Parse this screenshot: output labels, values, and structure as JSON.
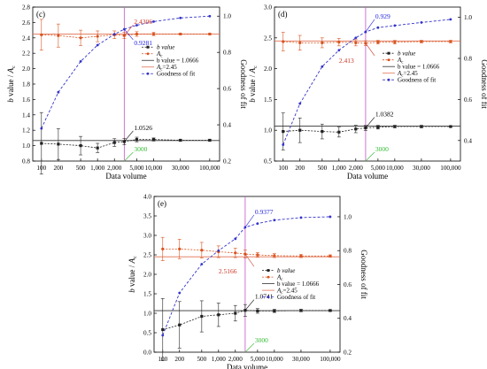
{
  "chart_data": [
    {
      "type": "line",
      "panel_label": "(c)",
      "x_scale": "log",
      "x": [
        100,
        200,
        500,
        1000,
        2000,
        3000,
        5000,
        10000,
        30000,
        100000
      ],
      "xticks": [
        100,
        200,
        500,
        1000,
        2000,
        5000,
        10000,
        30000,
        100000
      ],
      "xtick_labels": [
        "100",
        "200",
        "500",
        "1,000",
        "2,000",
        "5,000",
        "10,000",
        "30,000",
        "100,000"
      ],
      "xlim": [
        70,
        150000
      ],
      "xlabel": "Data volume",
      "ylabel_left_b": "b",
      "ylabel_left_rest": " value / ",
      "ylabel_left_a": "A",
      "ylabel_left_sub": "c",
      "ylim_left": [
        0.8,
        2.8
      ],
      "yticks_left": [
        0.8,
        1.0,
        1.2,
        1.4,
        1.6,
        1.8,
        2.0,
        2.2,
        2.4,
        2.6,
        2.8
      ],
      "ylabel_right": "Goodness of fit",
      "ylim_right": [
        0.2,
        1.05
      ],
      "yticks_right": [
        0.2,
        0.4,
        0.6,
        0.8,
        1.0
      ],
      "ref_b": 1.0666,
      "ref_ac": 2.45,
      "split_x": 3000,
      "b_values": [
        1.03,
        1.02,
        1.0,
        0.97,
        1.04,
        1.053,
        1.08,
        1.08,
        1.07,
        1.07
      ],
      "b_err": [
        0.4,
        0.2,
        0.12,
        0.06,
        0.05,
        0.04,
        0.03,
        0.02,
        0.01,
        0.01
      ],
      "ac_values": [
        2.44,
        2.43,
        2.4,
        2.42,
        2.44,
        2.43,
        2.45,
        2.45,
        2.45,
        2.45
      ],
      "ac_err": [
        0.2,
        0.15,
        0.1,
        0.07,
        0.05,
        0.04,
        0.03,
        0.02,
        0.01,
        0.01
      ],
      "gof_values": [
        0.38,
        0.58,
        0.75,
        0.84,
        0.9,
        0.928,
        0.95,
        0.97,
        0.99,
        1.0
      ],
      "annotations": {
        "b": "1.0526",
        "ac": "2.4306",
        "gof": "0.9281",
        "split": "3000"
      },
      "legend": {
        "b": "b value",
        "ac": "A",
        "ac_sub": "c",
        "ref_b": "b value = 1.0666",
        "ref_ac_pre": "A",
        "ref_ac_sub": "c",
        "ref_ac_post": "=2.45",
        "gof": "Goodness of fit"
      }
    },
    {
      "type": "line",
      "panel_label": "(d)",
      "x_scale": "log",
      "x": [
        100,
        200,
        500,
        1000,
        2000,
        3000,
        5000,
        10000,
        30000,
        100000
      ],
      "xticks": [
        100,
        200,
        500,
        1000,
        2000,
        5000,
        10000,
        30000,
        100000
      ],
      "xtick_labels": [
        "100",
        "200",
        "500",
        "1,000",
        "2,000",
        "5,000",
        "10,000",
        "30,000",
        "100,000"
      ],
      "xlim": [
        70,
        150000
      ],
      "xlabel": "Data volume",
      "ylabel_left_b": "b",
      "ylabel_left_rest": " value / ",
      "ylabel_left_a": "A",
      "ylabel_left_sub": "c",
      "ylim_left": [
        0.5,
        3.0
      ],
      "yticks_left": [
        0.5,
        1.0,
        1.5,
        2.0,
        2.5,
        3.0
      ],
      "ylabel_right": "Goodness of fit",
      "ylim_right": [
        0.3,
        1.05
      ],
      "yticks_right": [
        0.4,
        0.6,
        0.8,
        1.0
      ],
      "ref_b": 1.0666,
      "ref_ac": 2.45,
      "split_x": 3000,
      "b_values": [
        0.98,
        1.0,
        0.98,
        0.97,
        1.02,
        1.038,
        1.05,
        1.06,
        1.06,
        1.06
      ],
      "b_err": [
        0.3,
        0.2,
        0.12,
        0.08,
        0.06,
        0.04,
        0.03,
        0.02,
        0.02,
        0.01
      ],
      "ac_values": [
        2.44,
        2.42,
        2.42,
        2.43,
        2.42,
        2.413,
        2.43,
        2.43,
        2.44,
        2.44
      ],
      "ac_err": [
        0.15,
        0.12,
        0.08,
        0.06,
        0.05,
        0.04,
        0.03,
        0.03,
        0.02,
        0.02
      ],
      "gof_values": [
        0.38,
        0.58,
        0.76,
        0.84,
        0.9,
        0.929,
        0.95,
        0.96,
        0.975,
        0.99
      ],
      "annotations": {
        "b": "1.0382",
        "ac": "2.413",
        "gof": "0.929",
        "split": "3000"
      },
      "legend": {
        "b": "b value",
        "ac": "A",
        "ac_sub": "c",
        "ref_b": "b value = 1.0666",
        "ref_ac_pre": "A",
        "ref_ac_sub": "c",
        "ref_ac_post": "=2.45",
        "gof": "Goodness of fit"
      }
    },
    {
      "type": "line",
      "panel_label": "(e)",
      "x_scale": "log",
      "x": [
        100,
        200,
        500,
        1000,
        2000,
        3000,
        5000,
        10000,
        30000,
        100000
      ],
      "xticks": [
        100,
        200,
        500,
        1000,
        2000,
        5000,
        10000,
        30000,
        100000
      ],
      "xtick_labels": [
        "100",
        "200",
        "500",
        "1,000",
        "2,000",
        "5,000",
        "10,000",
        "30,000",
        "100,000"
      ],
      "xlim": [
        70,
        150000
      ],
      "xlabel": "Data volume",
      "ylabel_left_b": "b",
      "ylabel_left_rest": " value / ",
      "ylabel_left_a": "A",
      "ylabel_left_sub": "c",
      "ylim_left": [
        0.0,
        4.0
      ],
      "yticks_left": [
        0.0,
        0.5,
        1.0,
        1.5,
        2.0,
        2.5,
        3.0,
        3.5,
        4.0
      ],
      "ylabel_right": "Goodness of fit",
      "ylim_right": [
        0.2,
        1.12
      ],
      "yticks_right": [
        0.2,
        0.4,
        0.6,
        0.8,
        1.0
      ],
      "ref_b": 1.0666,
      "ref_ac": 2.45,
      "split_x": 3000,
      "b_values": [
        0.58,
        0.7,
        0.92,
        0.96,
        1.0,
        1.074,
        1.06,
        1.06,
        1.07,
        1.07
      ],
      "b_err": [
        0.8,
        0.6,
        0.4,
        0.3,
        0.2,
        0.15,
        0.06,
        0.04,
        0.03,
        0.02
      ],
      "ac_values": [
        2.65,
        2.65,
        2.62,
        2.58,
        2.55,
        2.52,
        2.5,
        2.48,
        2.47,
        2.47
      ],
      "ac_err": [
        0.3,
        0.25,
        0.2,
        0.15,
        0.12,
        0.1,
        0.06,
        0.05,
        0.04,
        0.03
      ],
      "gof_values": [
        0.3,
        0.55,
        0.72,
        0.8,
        0.87,
        0.9377,
        0.96,
        0.98,
        0.995,
        1.0
      ],
      "annotations": {
        "b": "1.0741",
        "ac": "2.5166",
        "gof": "0.9377",
        "split": "3000"
      },
      "legend": {
        "b": "b value",
        "ac": "A",
        "ac_sub": "c",
        "ref_b": "b value = 1.0666",
        "ref_ac_pre": "A",
        "ref_ac_sub": "c",
        "ref_ac_post": "=2.45",
        "gof": "Goodness of fit"
      }
    }
  ],
  "colors": {
    "b_series": "#222222",
    "ac_series": "#d9531e",
    "ref_b_line": "#333333",
    "ref_ac_line": "#e07050",
    "gof_series": "#3333cc",
    "split_line": "#cc66cc",
    "split_label": "#33bb33",
    "gof_label": "#2222dd",
    "ac_label": "#cc3322"
  }
}
